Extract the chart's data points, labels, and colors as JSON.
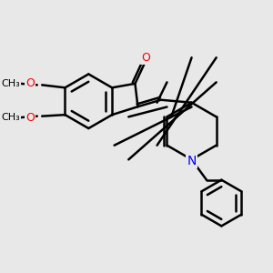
{
  "bg_color": "#e8e8e8",
  "bond_color": "#000000",
  "bond_width": 1.8,
  "atom_colors": {
    "O": "#ff0000",
    "N": "#0000ff",
    "C": "#000000"
  },
  "font_size": 9,
  "title": ""
}
